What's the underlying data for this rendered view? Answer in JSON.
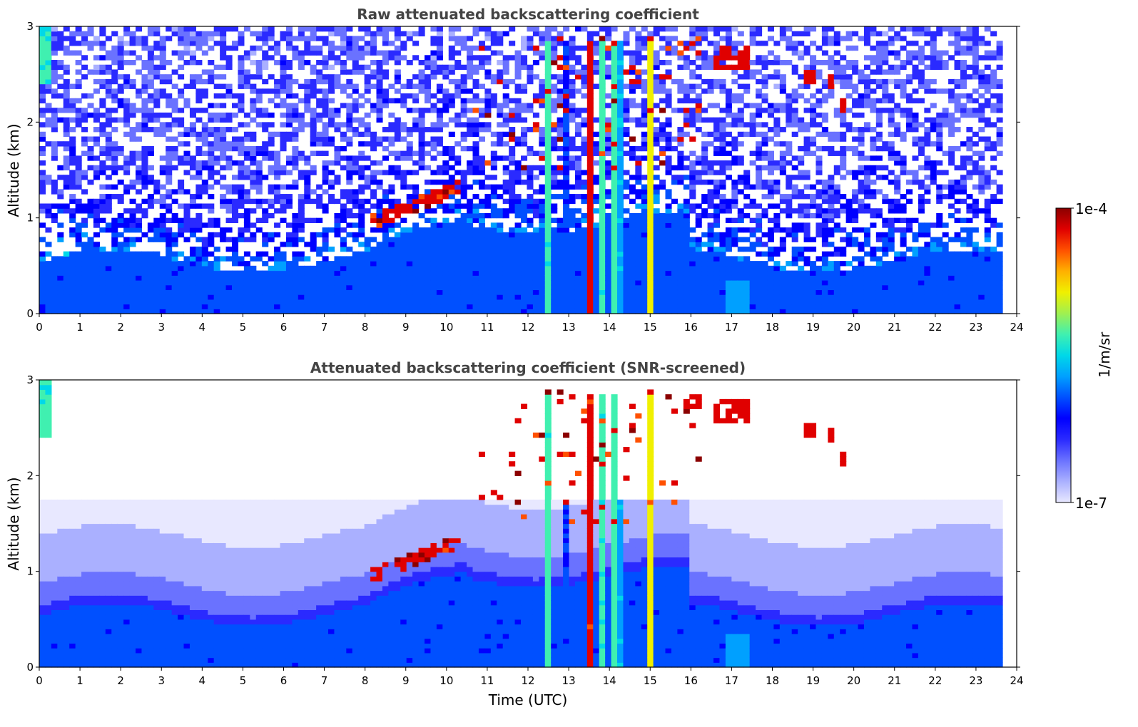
{
  "colors": {
    "background": "#ffffff",
    "title": "#444444",
    "colormap": [
      "#e8e8ff",
      "#aab0ff",
      "#6a72ff",
      "#2a2aff",
      "#0000ff",
      "#0050ff",
      "#00a0ff",
      "#00d8e8",
      "#40f0b0",
      "#a0f050",
      "#f0f000",
      "#ffb000",
      "#ff5000",
      "#e00000",
      "#8b0000"
    ]
  },
  "chart_data": [
    {
      "type": "heatmap",
      "title": "Raw attenuated backscattering coefficient",
      "xlabel": "",
      "ylabel": "Altitude (km)",
      "xlim": [
        0,
        24
      ],
      "ylim": [
        0,
        3
      ],
      "xticks": [
        "0",
        "1",
        "2",
        "3",
        "4",
        "5",
        "6",
        "7",
        "8",
        "9",
        "10",
        "11",
        "12",
        "13",
        "14",
        "15",
        "16",
        "17",
        "18",
        "19",
        "20",
        "21",
        "22",
        "23",
        "24"
      ],
      "yticks": [
        "0",
        "1",
        "2",
        "3"
      ],
      "data_end_time": 23.65,
      "features": [
        {
          "kind": "boundary_layer",
          "time": [
            0,
            23.65
          ],
          "altitude_top": [
            0.45,
            1.0
          ]
        },
        {
          "kind": "rising_layer_top",
          "time": [
            8.0,
            10.4
          ],
          "altitude": [
            0.95,
            1.35
          ]
        },
        {
          "kind": "cloud_columns",
          "time": [
            12.8,
            15.2
          ],
          "altitude": [
            0,
            3
          ]
        },
        {
          "kind": "strong_precipitation_column",
          "time": 13.5,
          "altitude": [
            0,
            2.8
          ]
        },
        {
          "kind": "elevated_clouds",
          "time": [
            16.6,
            17.4
          ],
          "altitude": [
            2.55,
            2.8
          ]
        },
        {
          "kind": "elevated_clouds",
          "time": [
            18.8,
            19.8
          ],
          "altitude": [
            2.1,
            2.55
          ]
        }
      ]
    },
    {
      "type": "heatmap",
      "title": "Attenuated backscattering coefficient (SNR-screened)",
      "xlabel": "Time (UTC)",
      "ylabel": "Altitude (km)",
      "xlim": [
        0,
        24
      ],
      "ylim": [
        0,
        3
      ],
      "xticks": [
        "0",
        "1",
        "2",
        "3",
        "4",
        "5",
        "6",
        "7",
        "8",
        "9",
        "10",
        "11",
        "12",
        "13",
        "14",
        "15",
        "16",
        "17",
        "18",
        "19",
        "20",
        "21",
        "22",
        "23",
        "24"
      ],
      "yticks": [
        "0",
        "1",
        "2",
        "3"
      ],
      "data_end_time": 23.65,
      "screened_above_km": 1.75
    }
  ],
  "colorbar": {
    "label": "1/m/sr",
    "max_label": "1e-4",
    "min_label": "1e-7",
    "scale": "log"
  }
}
